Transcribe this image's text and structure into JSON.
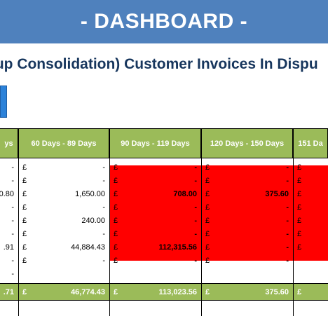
{
  "banner": {
    "title": "- DASHBOARD -"
  },
  "report": {
    "subtitle": "oup Consolidation) Customer Invoices In Dispu"
  },
  "table": {
    "currency": "£",
    "columns": [
      {
        "header": "ys",
        "rows": [
          "-",
          "-",
          "0.80",
          "-",
          "-",
          "-",
          ".91",
          "-",
          "-"
        ],
        "total": ".71"
      },
      {
        "header": "60 Days - 89 Days",
        "rows": [
          "-",
          "-",
          "1,650.00",
          "-",
          "240.00",
          "-",
          "44,884.43",
          "-",
          ""
        ],
        "total": "46,774.43"
      },
      {
        "header": "90 Days - 119 Days",
        "rows": [
          "-",
          "-",
          "708.00",
          "-",
          "-",
          "-",
          "112,315.56",
          "-",
          ""
        ],
        "total": "113,023.56"
      },
      {
        "header": "120 Days - 150 Days",
        "rows": [
          "-",
          "-",
          "375.60",
          "-",
          "-",
          "-",
          "-",
          "-",
          ""
        ],
        "total": "375.60"
      },
      {
        "header": "151 Da",
        "rows": [
          "",
          "",
          "",
          "",
          "",
          "",
          "",
          "",
          ""
        ],
        "total": ""
      }
    ]
  },
  "colors": {
    "banner": "#4f81bd",
    "header": "#9bbb59",
    "overdue": "#ff0000"
  }
}
